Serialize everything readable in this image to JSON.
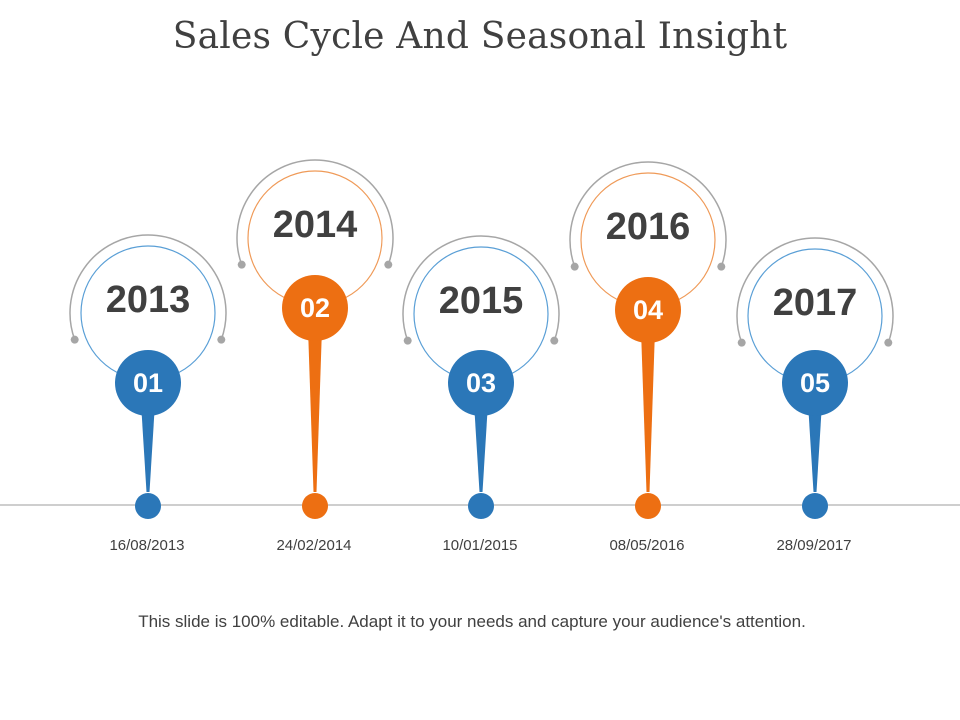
{
  "slide": {
    "title": "Sales Cycle And Seasonal Insight",
    "caption": "This slide is 100% editable. Adapt it to your needs and capture your audience's attention."
  },
  "colors": {
    "blue": "#2b77b8",
    "orange": "#ed6f12",
    "ring_blue": "#5a9fd6",
    "ring_orange": "#ef9a58",
    "arc_gray": "#a6a6a6",
    "line_gray": "#b0b0b0",
    "text": "#404040"
  },
  "milestones": [
    {
      "year": "2013",
      "number": "01",
      "date": "16/08/2013",
      "color": "blue"
    },
    {
      "year": "2014",
      "number": "02",
      "date": "24/02/2014",
      "color": "orange"
    },
    {
      "year": "2015",
      "number": "03",
      "date": "10/01/2015",
      "color": "blue"
    },
    {
      "year": "2016",
      "number": "04",
      "date": "08/05/2016",
      "color": "orange"
    },
    {
      "year": "2017",
      "number": "05",
      "date": "28/09/2017",
      "color": "blue"
    }
  ]
}
